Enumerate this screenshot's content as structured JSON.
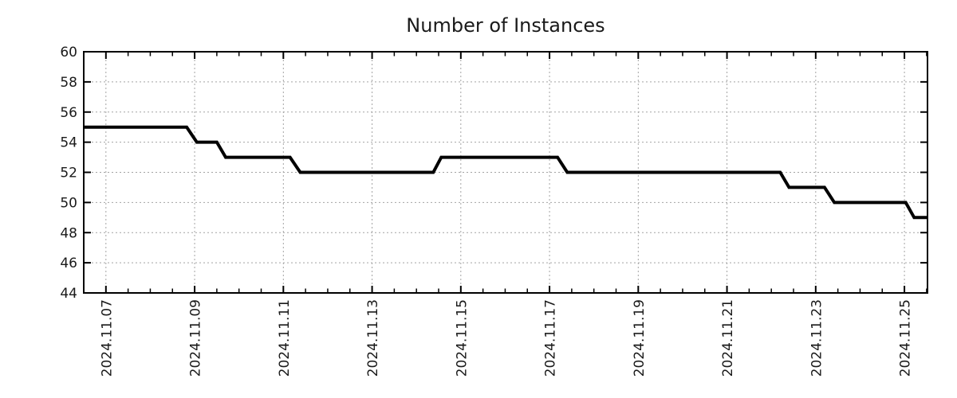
{
  "chart_data": {
    "type": "line",
    "line_style": "step-sampled",
    "title": "Number of Instances",
    "xlabel": "",
    "ylabel": "",
    "x_unit": "day of month, November 2024 (fractional days)",
    "xlim_days": [
      6.5,
      25.52
    ],
    "ylim": [
      44,
      60
    ],
    "y_ticks": [
      44,
      46,
      48,
      50,
      52,
      54,
      56,
      58,
      60
    ],
    "x_ticks": [
      {
        "day": 7,
        "label": "2024.11.07"
      },
      {
        "day": 9,
        "label": "2024.11.09"
      },
      {
        "day": 11,
        "label": "2024.11.11"
      },
      {
        "day": 13,
        "label": "2024.11.13"
      },
      {
        "day": 15,
        "label": "2024.11.15"
      },
      {
        "day": 17,
        "label": "2024.11.17"
      },
      {
        "day": 19,
        "label": "2024.11.19"
      },
      {
        "day": 21,
        "label": "2024.11.21"
      },
      {
        "day": 23,
        "label": "2024.11.23"
      },
      {
        "day": 25,
        "label": "2024.11.25"
      }
    ],
    "x_minor_tick_step_days": 0.5,
    "grid": true,
    "legend": false,
    "series": [
      {
        "name": "instances",
        "points": [
          [
            6.5,
            55
          ],
          [
            8.82,
            55
          ],
          [
            9.05,
            54
          ],
          [
            9.5,
            54
          ],
          [
            9.7,
            53
          ],
          [
            11.15,
            53
          ],
          [
            11.38,
            52
          ],
          [
            14.38,
            52
          ],
          [
            14.56,
            53
          ],
          [
            17.18,
            53
          ],
          [
            17.4,
            52
          ],
          [
            22.2,
            52
          ],
          [
            22.4,
            51
          ],
          [
            23.2,
            51
          ],
          [
            23.42,
            50
          ],
          [
            25.03,
            50
          ],
          [
            25.22,
            49
          ],
          [
            25.52,
            49
          ]
        ]
      }
    ],
    "colors": {
      "line": "#000000",
      "axis": "#000000",
      "grid": "#a3a3a3",
      "text": "#1a1a1a",
      "background": "#ffffff"
    }
  }
}
